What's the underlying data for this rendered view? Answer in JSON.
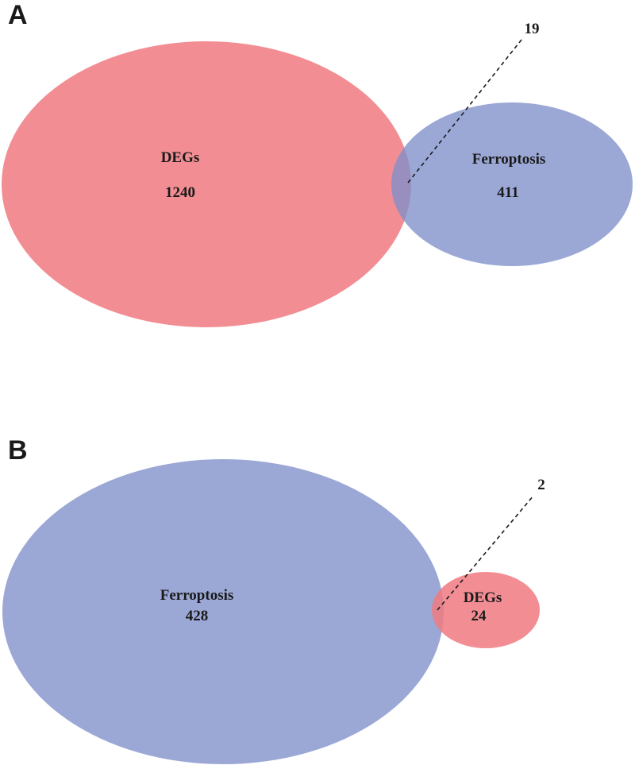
{
  "colors": {
    "degs": "#f07a80",
    "ferroptosis": "#7f8fca",
    "text": "#1a1a1a"
  },
  "panels": [
    {
      "letter": "A",
      "sets": [
        {
          "name": "DEGs",
          "count": "1240"
        },
        {
          "name": "Ferroptosis",
          "count": "411"
        }
      ],
      "overlap": "19"
    },
    {
      "letter": "B",
      "sets": [
        {
          "name": "Ferroptosis",
          "count": "428"
        },
        {
          "name": "DEGs",
          "count": "24"
        }
      ],
      "overlap": "2"
    }
  ]
}
